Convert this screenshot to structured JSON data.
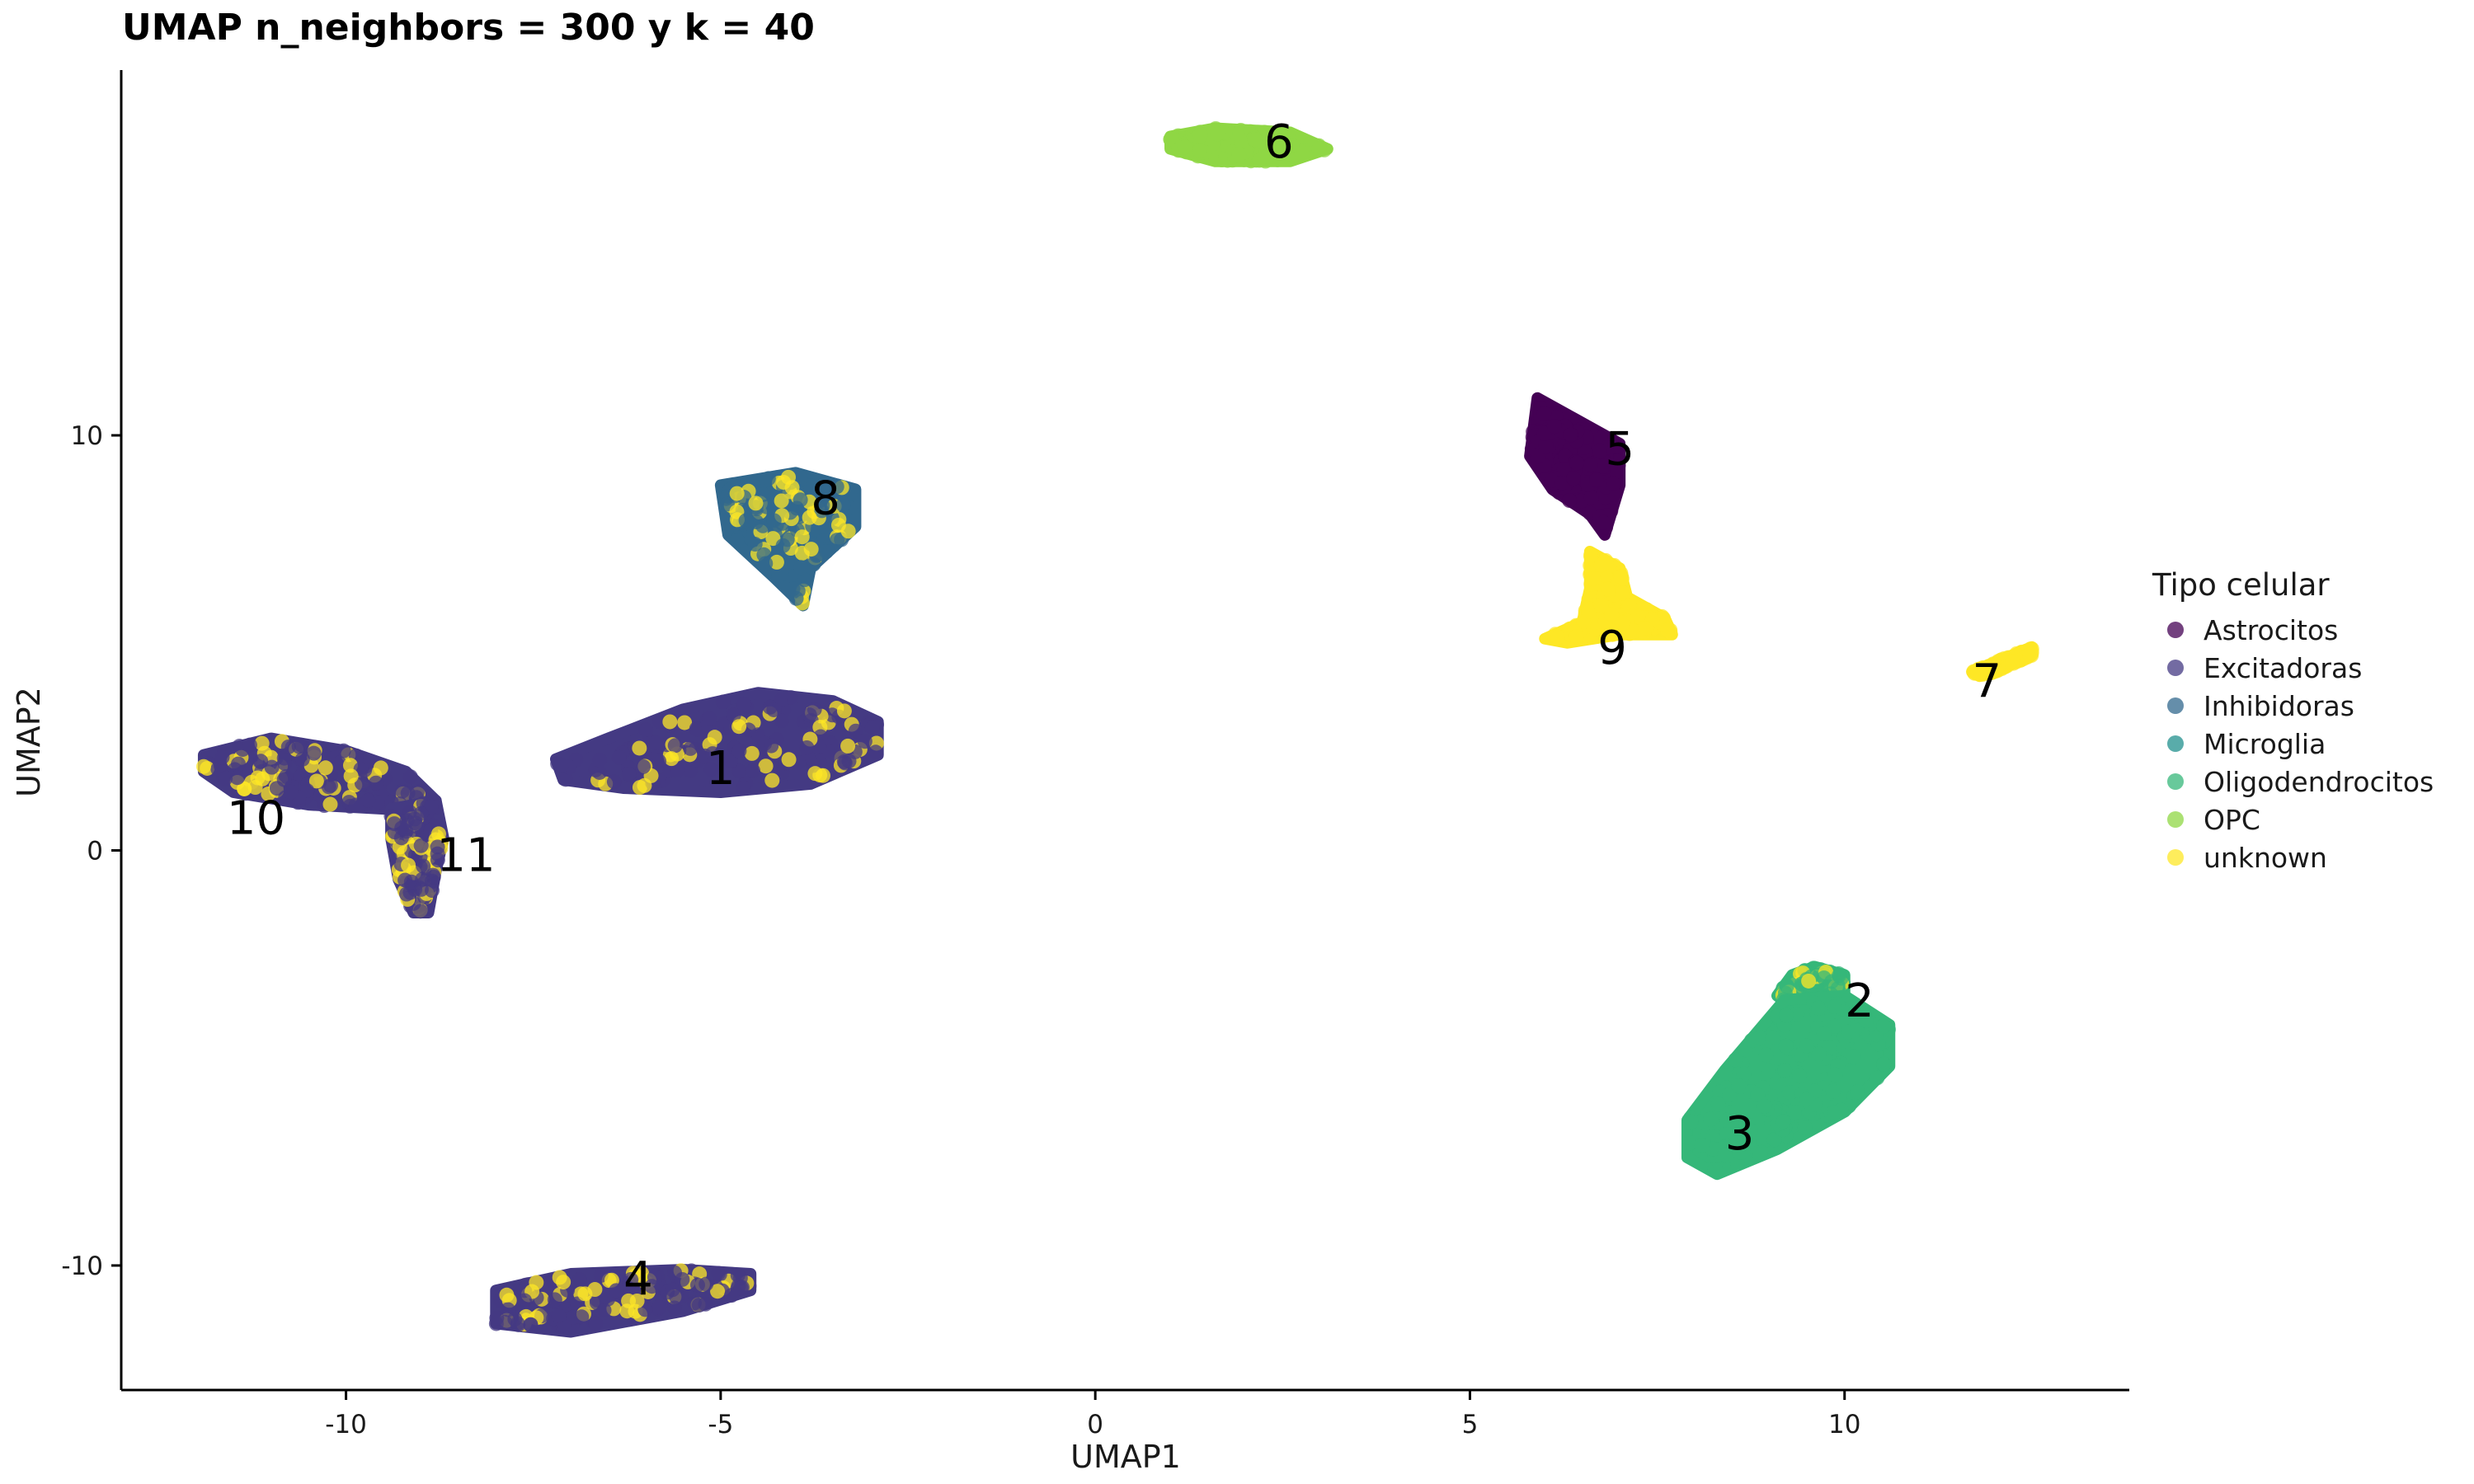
{
  "chart_data": {
    "type": "scatter",
    "title": "UMAP n_neighbors = 300 y k = 40",
    "xlabel": "UMAP1",
    "ylabel": "UMAP2",
    "xlim": [
      -13,
      13.8
    ],
    "ylim": [
      -13,
      18.8
    ],
    "xticks": [
      -10,
      -5,
      0,
      5,
      10
    ],
    "yticks": [
      -10,
      0,
      10
    ],
    "grid": false,
    "legend": {
      "title": "Tipo celular",
      "placement": "right",
      "entries": [
        {
          "name": "Astrocitos",
          "color": "#440154"
        },
        {
          "name": "Excitadoras",
          "color": "#443A83"
        },
        {
          "name": "Inhibidoras",
          "color": "#31688E"
        },
        {
          "name": "Microglia",
          "color": "#21908D"
        },
        {
          "name": "Oligodendrocitos",
          "color": "#35B779"
        },
        {
          "name": "OPC",
          "color": "#8FD744"
        },
        {
          "name": "unknown",
          "color": "#FDE725"
        }
      ]
    },
    "clusters": [
      {
        "label": "1",
        "label_x": -5.0,
        "label_y": 1.9,
        "dominant": "Excitadoras",
        "shape": [
          [
            -7.2,
            2.2
          ],
          [
            -6.5,
            2.7
          ],
          [
            -5.5,
            3.4
          ],
          [
            -4.5,
            3.8
          ],
          [
            -3.5,
            3.6
          ],
          [
            -2.9,
            3.1
          ],
          [
            -2.9,
            2.3
          ],
          [
            -3.8,
            1.6
          ],
          [
            -5.0,
            1.4
          ],
          [
            -6.3,
            1.5
          ],
          [
            -7.1,
            1.7
          ]
        ],
        "overlay": "unknown"
      },
      {
        "label": "2",
        "label_x": 10.2,
        "label_y": -3.7,
        "dominant": "Oligodendrocitos",
        "shape": [
          [
            9.3,
            -3.0
          ],
          [
            9.6,
            -2.8
          ],
          [
            10.0,
            -3.0
          ],
          [
            10.0,
            -3.8
          ],
          [
            9.4,
            -3.9
          ],
          [
            9.1,
            -3.5
          ]
        ],
        "overlay": "unknown"
      },
      {
        "label": "3",
        "label_x": 8.6,
        "label_y": -6.9,
        "dominant": "Oligodendrocitos",
        "shape": [
          [
            9.2,
            -3.6
          ],
          [
            10.0,
            -3.5
          ],
          [
            10.6,
            -4.2
          ],
          [
            10.6,
            -5.2
          ],
          [
            10.0,
            -6.3
          ],
          [
            9.1,
            -7.2
          ],
          [
            8.3,
            -7.8
          ],
          [
            7.9,
            -7.4
          ],
          [
            7.9,
            -6.5
          ],
          [
            8.4,
            -5.3
          ]
        ],
        "overlay": null
      },
      {
        "label": "4",
        "label_x": -6.1,
        "label_y": -10.4,
        "dominant": "Excitadoras",
        "shape": [
          [
            -8.0,
            -10.6
          ],
          [
            -7.0,
            -10.2
          ],
          [
            -5.5,
            -10.1
          ],
          [
            -4.6,
            -10.2
          ],
          [
            -4.6,
            -10.6
          ],
          [
            -5.5,
            -11.1
          ],
          [
            -7.0,
            -11.6
          ],
          [
            -8.0,
            -11.4
          ]
        ],
        "overlay": "unknown"
      },
      {
        "label": "5",
        "label_x": 7.0,
        "label_y": 9.6,
        "dominant": "Astrocitos",
        "shape": [
          [
            5.9,
            10.9
          ],
          [
            6.4,
            10.4
          ],
          [
            7.0,
            9.8
          ],
          [
            7.0,
            8.8
          ],
          [
            6.8,
            7.6
          ],
          [
            6.6,
            8.1
          ],
          [
            6.1,
            8.7
          ],
          [
            5.8,
            9.5
          ]
        ],
        "overlay": null
      },
      {
        "label": "6",
        "label_x": 2.45,
        "label_y": 17.0,
        "dominant": "OPC",
        "shape": [
          [
            1.0,
            17.2
          ],
          [
            1.6,
            17.4
          ],
          [
            2.6,
            17.3
          ],
          [
            3.1,
            16.9
          ],
          [
            2.6,
            16.6
          ],
          [
            1.6,
            16.6
          ],
          [
            1.0,
            16.9
          ]
        ],
        "overlay": null
      },
      {
        "label": "7",
        "label_x": 11.9,
        "label_y": 4.0,
        "dominant": "unknown",
        "shape": [
          [
            11.7,
            4.3
          ],
          [
            12.1,
            4.6
          ],
          [
            12.5,
            4.9
          ],
          [
            12.5,
            4.7
          ],
          [
            12.0,
            4.3
          ],
          [
            11.8,
            4.2
          ]
        ],
        "overlay": null
      },
      {
        "label": "8",
        "label_x": -3.6,
        "label_y": 8.4,
        "dominant": "Inhibidoras",
        "shape": [
          [
            -5.0,
            8.8
          ],
          [
            -4.0,
            9.1
          ],
          [
            -3.2,
            8.7
          ],
          [
            -3.2,
            7.8
          ],
          [
            -3.8,
            6.8
          ],
          [
            -3.9,
            5.9
          ],
          [
            -4.3,
            6.6
          ],
          [
            -4.9,
            7.6
          ]
        ],
        "overlay": "unknown"
      },
      {
        "label": "9",
        "label_x": 6.9,
        "label_y": 4.8,
        "dominant": "unknown",
        "shape": [
          [
            6.6,
            7.2
          ],
          [
            7.0,
            6.8
          ],
          [
            7.1,
            6.1
          ],
          [
            7.6,
            5.6
          ],
          [
            7.7,
            5.2
          ],
          [
            7.0,
            5.2
          ],
          [
            6.3,
            5.0
          ],
          [
            6.0,
            5.1
          ],
          [
            6.5,
            5.5
          ],
          [
            6.6,
            6.3
          ]
        ],
        "overlay": null
      },
      {
        "label": "10",
        "label_x": -11.2,
        "label_y": 0.7,
        "dominant": "Excitadoras",
        "shape": [
          [
            -11.9,
            2.3
          ],
          [
            -11.0,
            2.7
          ],
          [
            -10.0,
            2.4
          ],
          [
            -9.2,
            1.9
          ],
          [
            -8.8,
            1.2
          ],
          [
            -9.5,
            1.0
          ],
          [
            -10.5,
            1.1
          ],
          [
            -11.5,
            1.4
          ],
          [
            -11.9,
            1.9
          ]
        ],
        "overlay": "unknown"
      },
      {
        "label": "11",
        "label_x": -8.4,
        "label_y": -0.2,
        "dominant": "Excitadoras",
        "shape": [
          [
            -9.4,
            1.0
          ],
          [
            -8.8,
            1.2
          ],
          [
            -8.7,
            0.3
          ],
          [
            -8.8,
            -0.5
          ],
          [
            -8.9,
            -1.5
          ],
          [
            -9.1,
            -1.5
          ],
          [
            -9.3,
            -0.7
          ],
          [
            -9.4,
            0.3
          ]
        ],
        "overlay": "unknown"
      }
    ]
  }
}
